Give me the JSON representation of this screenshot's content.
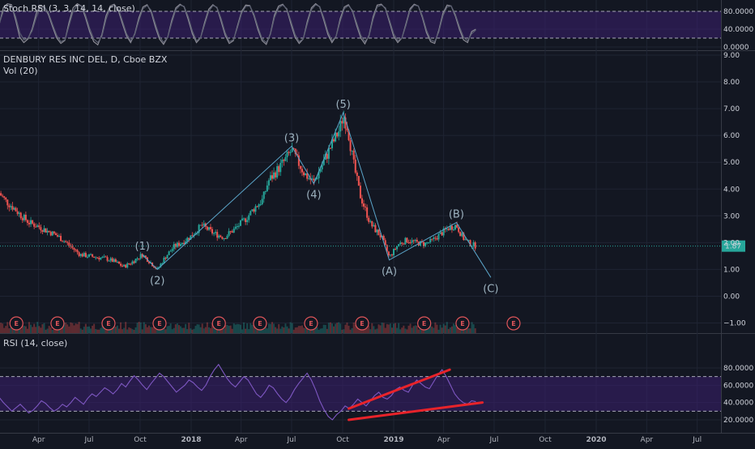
{
  "colors": {
    "background": "#131722",
    "grid": "#1f2433",
    "bull": "#26a69a",
    "bear": "#ef5350",
    "stoch_line": "#8c8c96",
    "rsi_line": "#7e57c2",
    "band_fill": "#3a1f6e",
    "wave_line": "#5ba5c9",
    "divergence": "#e8232a",
    "price_tag": "#26a69a",
    "earnings": "#e0555a"
  },
  "chart_data": [
    {
      "type": "line",
      "pane": "stoch-rsi",
      "title": "Stoch RSI (3, 3, 14, 14, close)",
      "ylim": [
        0,
        100
      ],
      "band": [
        20,
        80
      ],
      "y_ticks": [
        "80.0000",
        "40.0000",
        "0.0000"
      ],
      "y_tick_values": [
        80,
        40,
        0
      ],
      "x_start": "2017-01-20",
      "x_end": "2019-05-29",
      "series": [
        {
          "kind": "k",
          "values": [
            50,
            88,
            97,
            95,
            60,
            22,
            10,
            18,
            40,
            75,
            93,
            90,
            72,
            45,
            20,
            8,
            15,
            55,
            88,
            97,
            92,
            66,
            35,
            12,
            5,
            28,
            70,
            92,
            96,
            82,
            52,
            25,
            10,
            30,
            66,
            90,
            95,
            78,
            45,
            18,
            6,
            22,
            60,
            88,
            96,
            90,
            62,
            30,
            10,
            20,
            55,
            85,
            95,
            88,
            58,
            26,
            8,
            14,
            48,
            80,
            94,
            93,
            70,
            38,
            14,
            6,
            30,
            72,
            92,
            96,
            84,
            52,
            22,
            8,
            18,
            58,
            88,
            97,
            90,
            60,
            28,
            10,
            24,
            64,
            90,
            95,
            80,
            48,
            20,
            7,
            26,
            68,
            94,
            96,
            86,
            55,
            24,
            10,
            20,
            52,
            86,
            96,
            92,
            66,
            32,
            12,
            8,
            38,
            76,
            94,
            92,
            70,
            40,
            16,
            10,
            35,
            40
          ]
        },
        {
          "kind": "d",
          "values": [
            52,
            80,
            93,
            92,
            68,
            32,
            16,
            20,
            36,
            66,
            88,
            90,
            76,
            50,
            26,
            12,
            16,
            48,
            80,
            94,
            92,
            72,
            42,
            18,
            10,
            24,
            62,
            88,
            94,
            86,
            58,
            30,
            14,
            28,
            60,
            86,
            93,
            82,
            52,
            24,
            10,
            22,
            54,
            84,
            94,
            91,
            68,
            36,
            14,
            20,
            50,
            80,
            93,
            89,
            64,
            32,
            12,
            16,
            44,
            76,
            91,
            92,
            74,
            44,
            18,
            10,
            28,
            66,
            88,
            94,
            86,
            58,
            28,
            12,
            18,
            52,
            84,
            95,
            91,
            66,
            34,
            14,
            24,
            58,
            86,
            93,
            82,
            54,
            26,
            12,
            24,
            62,
            90,
            94,
            88,
            60,
            30,
            14,
            20,
            48,
            82,
            94,
            92,
            70,
            38,
            16,
            12,
            34,
            70,
            90,
            92,
            74,
            46,
            22,
            14,
            30,
            38
          ]
        }
      ]
    },
    {
      "type": "candlestick",
      "pane": "price",
      "title": "DENBURY RES INC DEL, D, Cboe BZX",
      "subtitle": "Vol (20)",
      "ylim": [
        -1.3,
        9.1
      ],
      "y_ticks": [
        "9.00",
        "8.00",
        "7.00",
        "6.00",
        "5.00",
        "4.00",
        "3.00",
        "2.00",
        "1.00",
        "0.00",
        "−1.00"
      ],
      "y_tick_values": [
        9,
        8,
        7,
        6,
        5,
        4,
        3,
        2,
        1,
        0,
        -1
      ],
      "x_start": "2017-01-20",
      "x_end": "2019-05-29",
      "close_points": [
        [
          "2017-01-20",
          3.85
        ],
        [
          "2017-02-01",
          3.55
        ],
        [
          "2017-02-15",
          3.3
        ],
        [
          "2017-03-01",
          3.0
        ],
        [
          "2017-03-15",
          2.75
        ],
        [
          "2017-04-01",
          2.6
        ],
        [
          "2017-04-15",
          2.45
        ],
        [
          "2017-05-01",
          2.3
        ],
        [
          "2017-05-15",
          2.1
        ],
        [
          "2017-06-01",
          1.8
        ],
        [
          "2017-06-15",
          1.55
        ],
        [
          "2017-07-01",
          1.5
        ],
        [
          "2017-07-15",
          1.45
        ],
        [
          "2017-08-01",
          1.4
        ],
        [
          "2017-08-15",
          1.3
        ],
        [
          "2017-09-01",
          1.1
        ],
        [
          "2017-09-15",
          1.25
        ],
        [
          "2017-10-01",
          1.5
        ],
        [
          "2017-10-05",
          1.55
        ],
        [
          "2017-10-20",
          1.25
        ],
        [
          "2017-11-01",
          1.0
        ],
        [
          "2017-11-15",
          1.45
        ],
        [
          "2017-12-01",
          1.85
        ],
        [
          "2017-12-15",
          2.0
        ],
        [
          "2018-01-01",
          2.25
        ],
        [
          "2018-01-20",
          2.65
        ],
        [
          "2018-02-10",
          2.35
        ],
        [
          "2018-03-01",
          2.2
        ],
        [
          "2018-03-20",
          2.5
        ],
        [
          "2018-04-10",
          2.9
        ],
        [
          "2018-04-25",
          3.3
        ],
        [
          "2018-05-10",
          3.6
        ],
        [
          "2018-05-20",
          4.3
        ],
        [
          "2018-06-01",
          4.6
        ],
        [
          "2018-06-20",
          5.1
        ],
        [
          "2018-07-01",
          5.45
        ],
        [
          "2018-07-10",
          5.1
        ],
        [
          "2018-07-25",
          4.55
        ],
        [
          "2018-08-10",
          4.25
        ],
        [
          "2018-08-25",
          4.9
        ],
        [
          "2018-09-10",
          5.6
        ],
        [
          "2018-09-25",
          6.2
        ],
        [
          "2018-10-02",
          6.75
        ],
        [
          "2018-10-10",
          6.3
        ],
        [
          "2018-10-20",
          5.0
        ],
        [
          "2018-11-01",
          3.8
        ],
        [
          "2018-11-20",
          2.7
        ],
        [
          "2018-12-10",
          2.2
        ],
        [
          "2018-12-24",
          1.45
        ],
        [
          "2019-01-10",
          1.95
        ],
        [
          "2019-01-25",
          2.1
        ],
        [
          "2019-02-10",
          2.0
        ],
        [
          "2019-02-25",
          1.95
        ],
        [
          "2019-03-10",
          2.05
        ],
        [
          "2019-03-25",
          2.3
        ],
        [
          "2019-04-10",
          2.55
        ],
        [
          "2019-04-24",
          2.65
        ],
        [
          "2019-05-05",
          2.2
        ],
        [
          "2019-05-15",
          2.0
        ],
        [
          "2019-05-29",
          1.87
        ]
      ],
      "last_price": {
        "label": "1.87",
        "value": 1.87
      },
      "waves": [
        {
          "label": "(1)",
          "date": "2017-10-05",
          "value": 1.55,
          "label_pos": "above"
        },
        {
          "label": "(2)",
          "date": "2017-11-01",
          "value": 1.0,
          "label_pos": "below"
        },
        {
          "label": "(3)",
          "date": "2018-07-01",
          "value": 5.6,
          "label_pos": "above"
        },
        {
          "label": "(4)",
          "date": "2018-08-10",
          "value": 4.2,
          "label_pos": "below"
        },
        {
          "label": "(5)",
          "date": "2018-10-02",
          "value": 6.85,
          "label_pos": "above"
        },
        {
          "label": "(A)",
          "date": "2018-12-24",
          "value": 1.35,
          "label_pos": "below"
        },
        {
          "label": "(B)",
          "date": "2019-04-24",
          "value": 2.75,
          "label_pos": "above"
        },
        {
          "label": "(C)",
          "date": "2019-06-25",
          "value": 0.7,
          "label_pos": "below"
        }
      ],
      "earnings_marker": "E",
      "earnings_dates": [
        "2017-02-20",
        "2017-05-05",
        "2017-08-05",
        "2017-11-05",
        "2018-02-20",
        "2018-05-05",
        "2018-08-05",
        "2018-11-05",
        "2019-02-25",
        "2019-05-05",
        "2019-08-05"
      ]
    },
    {
      "type": "line",
      "pane": "rsi",
      "title": "RSI (14, close)",
      "ylim": [
        18,
        88
      ],
      "band": [
        30,
        70
      ],
      "y_ticks": [
        "80.0000",
        "60.0000",
        "40.0000",
        "20.0000"
      ],
      "y_tick_values": [
        80,
        60,
        40,
        20
      ],
      "x_start": "2017-01-20",
      "x_end": "2019-05-29",
      "values": [
        46,
        40,
        35,
        30,
        34,
        38,
        33,
        28,
        31,
        36,
        42,
        39,
        34,
        30,
        33,
        38,
        35,
        40,
        46,
        42,
        38,
        45,
        50,
        47,
        52,
        57,
        54,
        50,
        55,
        62,
        58,
        65,
        71,
        66,
        60,
        55,
        62,
        68,
        74,
        70,
        64,
        58,
        52,
        56,
        60,
        66,
        63,
        58,
        54,
        60,
        70,
        78,
        84,
        76,
        68,
        62,
        58,
        64,
        70,
        66,
        58,
        50,
        46,
        52,
        60,
        57,
        50,
        44,
        40,
        46,
        55,
        62,
        68,
        74,
        66,
        55,
        42,
        32,
        24,
        20,
        26,
        30,
        36,
        33,
        38,
        44,
        40,
        36,
        42,
        48,
        52,
        46,
        44,
        48,
        55,
        58,
        54,
        52,
        60,
        66,
        62,
        58,
        56,
        64,
        72,
        78,
        70,
        60,
        50,
        44,
        40,
        38,
        42,
        41
      ],
      "divergence_lines": [
        {
          "from": [
            "2018-10-12",
            33
          ],
          "to": [
            "2019-04-12",
            78
          ]
        },
        {
          "from": [
            "2018-10-12",
            20
          ],
          "to": [
            "2019-06-10",
            40
          ]
        }
      ]
    }
  ],
  "x_axis": {
    "ticks": [
      {
        "date": "2017-04-01",
        "label": "Apr",
        "bold": false
      },
      {
        "date": "2017-07-01",
        "label": "Jul",
        "bold": false
      },
      {
        "date": "2017-10-01",
        "label": "Oct",
        "bold": false
      },
      {
        "date": "2018-01-01",
        "label": "2018",
        "bold": true
      },
      {
        "date": "2018-04-01",
        "label": "Apr",
        "bold": false
      },
      {
        "date": "2018-07-01",
        "label": "Jul",
        "bold": false
      },
      {
        "date": "2018-10-01",
        "label": "Oct",
        "bold": false
      },
      {
        "date": "2019-01-01",
        "label": "2019",
        "bold": true
      },
      {
        "date": "2019-04-01",
        "label": "Apr",
        "bold": false
      },
      {
        "date": "2019-07-01",
        "label": "Jul",
        "bold": false
      },
      {
        "date": "2019-10-01",
        "label": "Oct",
        "bold": false
      },
      {
        "date": "2020-01-01",
        "label": "2020",
        "bold": true
      },
      {
        "date": "2020-04-01",
        "label": "Apr",
        "bold": false
      },
      {
        "date": "2020-07-01",
        "label": "Jul",
        "bold": false
      }
    ]
  }
}
